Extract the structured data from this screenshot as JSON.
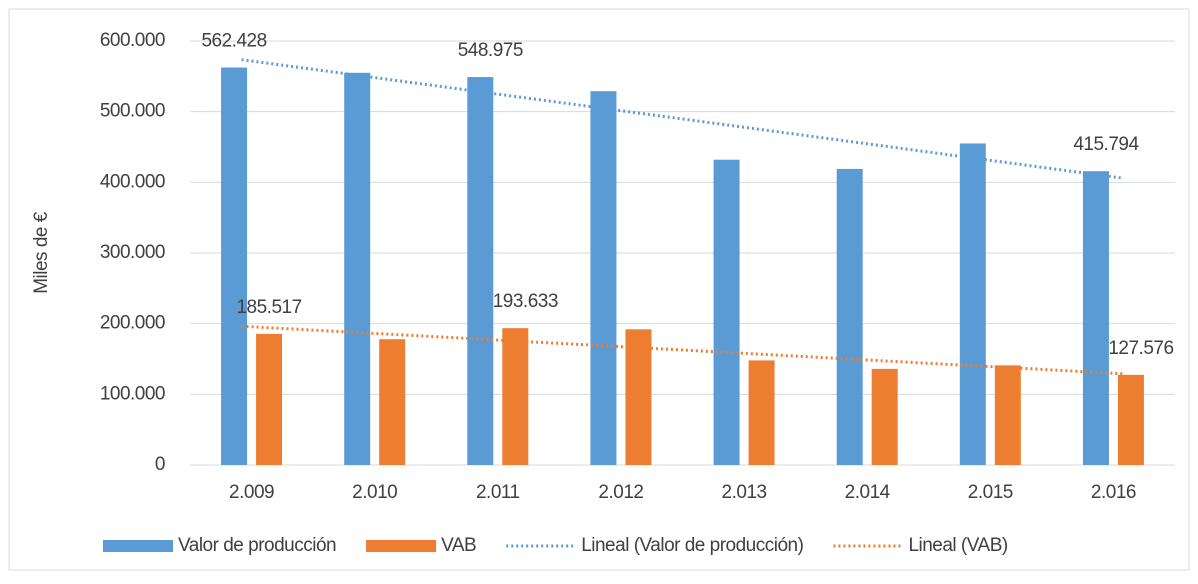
{
  "chart_data": {
    "type": "bar",
    "ylabel": "Miles de €",
    "categories": [
      "2.009",
      "2.010",
      "2.011",
      "2.012",
      "2.013",
      "2.014",
      "2.015",
      "2.016"
    ],
    "series": [
      {
        "name": "Valor de producción",
        "color": "#5b9bd5",
        "values": [
          562428,
          555000,
          548975,
          529000,
          432000,
          419000,
          455000,
          415794
        ],
        "value_labels": [
          "562.428",
          null,
          "548.975",
          null,
          null,
          null,
          null,
          "415.794"
        ]
      },
      {
        "name": "VAB",
        "color": "#ed7d31",
        "values": [
          185517,
          178000,
          193633,
          192000,
          148000,
          136000,
          141000,
          127576
        ],
        "value_labels": [
          "185.517",
          null,
          "193.633",
          null,
          null,
          null,
          null,
          "127.576"
        ]
      }
    ],
    "trendlines": [
      {
        "name": "Lineal (Valor de producción)",
        "type": "linear",
        "color": "#5b9bd5"
      },
      {
        "name": "Lineal (VAB)",
        "type": "linear",
        "color": "#ed7d31"
      }
    ],
    "ylim": [
      0,
      600000
    ],
    "yticks": [
      0,
      {
        "value": 100000,
        "label": "100.000"
      },
      {
        "value": 200000,
        "label": "200.000"
      },
      {
        "value": 300000,
        "label": "300.000"
      },
      {
        "value": 400000,
        "label": "400.000"
      },
      {
        "value": 500000,
        "label": "500.000"
      },
      {
        "value": 600000,
        "label": "600.000"
      }
    ],
    "grid": true,
    "legend": "bottom"
  }
}
